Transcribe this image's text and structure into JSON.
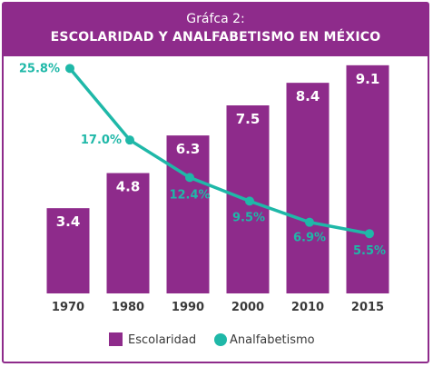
{
  "header": {
    "subtitle": "Gráfca 2:",
    "title": "ESCOLARIDAD Y ANALFABETISMO EN MÉXICO"
  },
  "colors": {
    "bar": "#8e2b8b",
    "line": "#1fb8a8",
    "header": "#8e2b8b"
  },
  "chart_data": {
    "type": "bar",
    "categories": [
      "1970",
      "1980",
      "1990",
      "2000",
      "2010",
      "2015"
    ],
    "series": [
      {
        "name": "Escolaridad",
        "type": "bar",
        "values": [
          3.4,
          4.8,
          6.3,
          7.5,
          8.4,
          9.1
        ],
        "labels": [
          "3.4",
          "4.8",
          "6.3",
          "7.5",
          "8.4",
          "9.1"
        ]
      },
      {
        "name": "Analfabetismo",
        "type": "line",
        "values": [
          25.8,
          17.0,
          12.4,
          9.5,
          6.9,
          5.5
        ],
        "labels": [
          "25.8%",
          "17.0%",
          "12.4%",
          "9.5%",
          "6.9%",
          "5.5%"
        ]
      }
    ],
    "legend": [
      "Escolaridad",
      "Analfabetismo"
    ],
    "legend_position": "bottom",
    "grid": false
  }
}
